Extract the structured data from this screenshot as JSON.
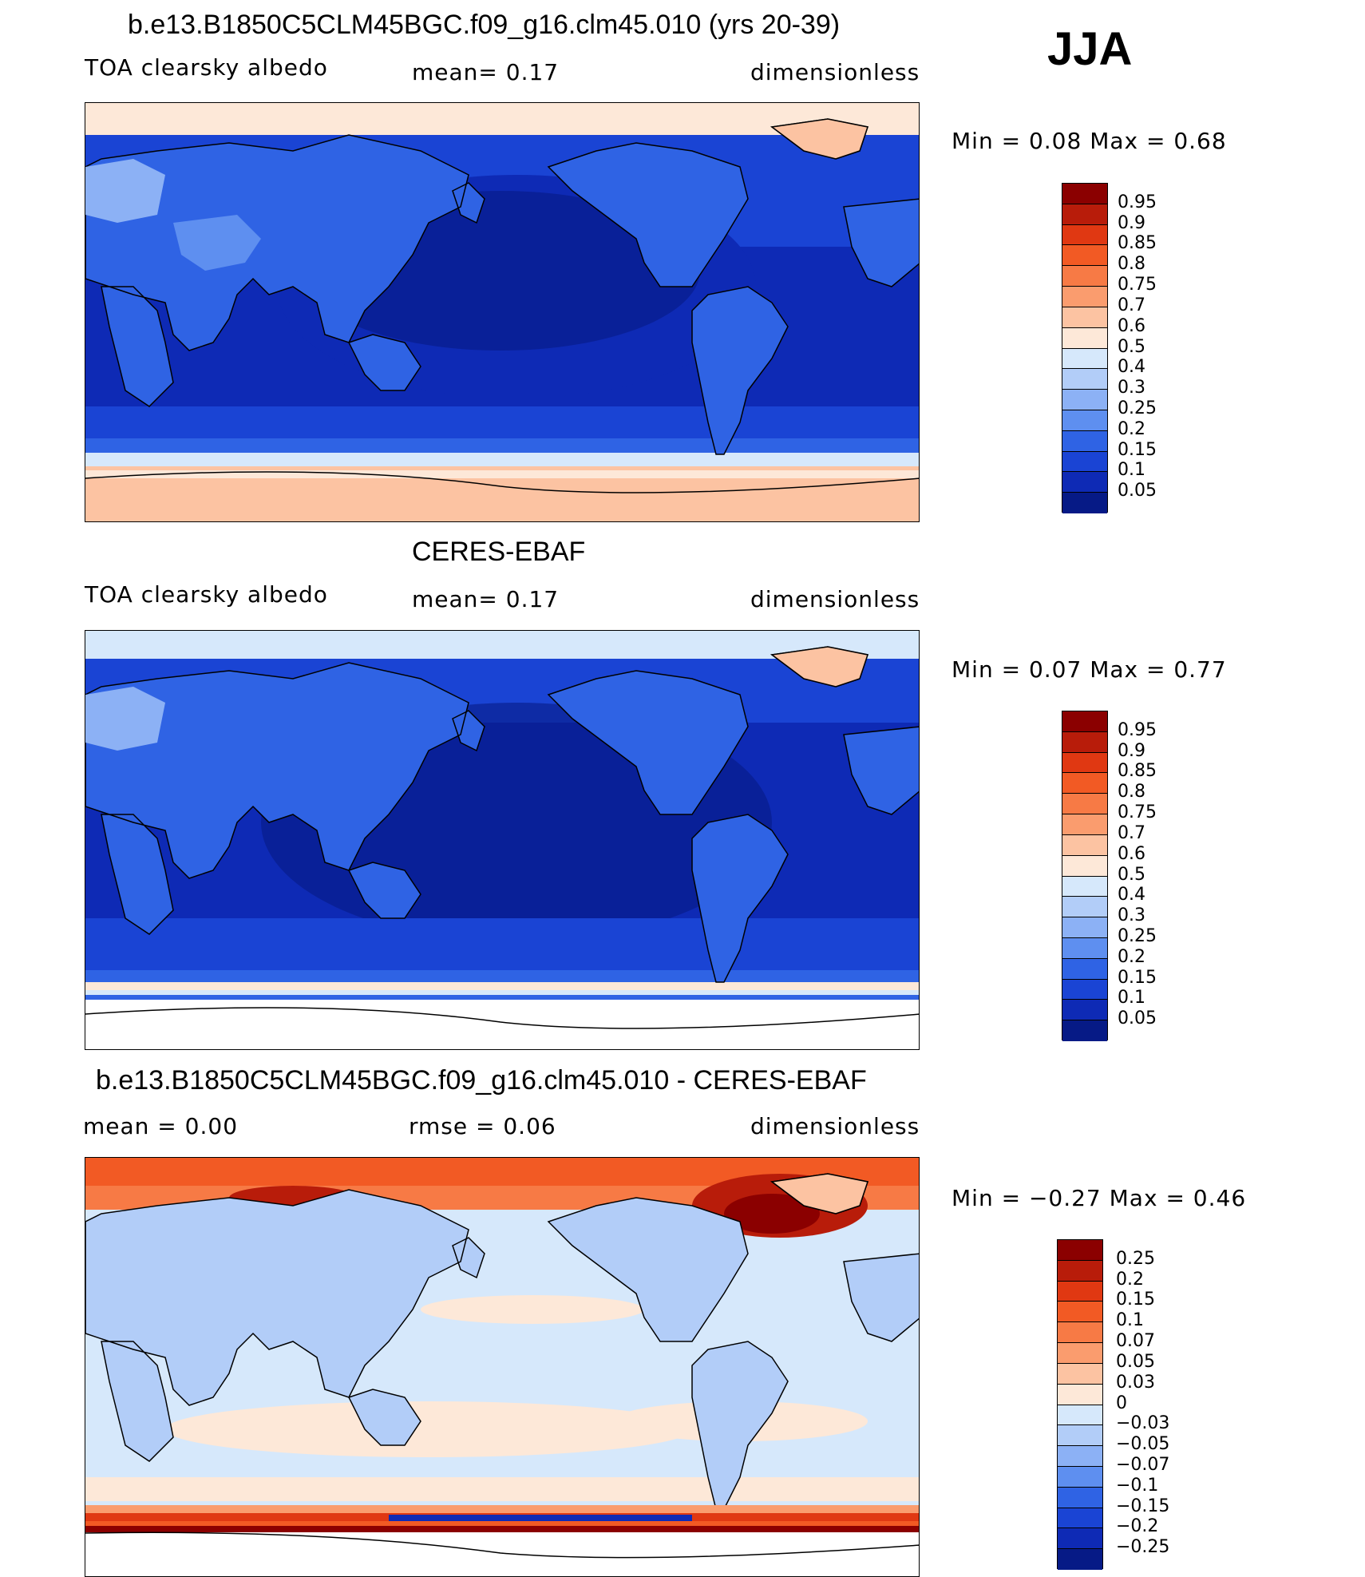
{
  "season": "JJA",
  "panels": [
    {
      "title": "b.e13.B1850C5CLM45BGC.f09_g16.clm45.010 (yrs 20-39)",
      "variable": "TOA clearsky albedo",
      "left_stat": "",
      "mid_stat": "mean=    0.17",
      "units": "dimensionless",
      "minmax": "Min  =     0.08  Max  =     0.68",
      "colorbar_levels": [
        "0.95",
        "0.9",
        "0.85",
        "0.8",
        "0.75",
        "0.7",
        "0.6",
        "0.5",
        "0.4",
        "0.3",
        "0.25",
        "0.2",
        "0.15",
        "0.1",
        "0.05"
      ],
      "colors": [
        "#8b0000",
        "#b81c0a",
        "#e03812",
        "#f25a24",
        "#f77a45",
        "#fa9c6e",
        "#fcc3a2",
        "#fde8d8",
        "#d6e8fb",
        "#b2cdf8",
        "#8cb1f5",
        "#5e8ff0",
        "#2f63e4",
        "#1a44d4",
        "#0e2ab5",
        "#061a86"
      ]
    },
    {
      "title": "CERES-EBAF",
      "variable": "TOA clearsky albedo",
      "left_stat": "",
      "mid_stat": "mean=    0.17",
      "units": "dimensionless",
      "minmax": "Min  =     0.07  Max  =     0.77",
      "colorbar_levels": [
        "0.95",
        "0.9",
        "0.85",
        "0.8",
        "0.75",
        "0.7",
        "0.6",
        "0.5",
        "0.4",
        "0.3",
        "0.25",
        "0.2",
        "0.15",
        "0.1",
        "0.05"
      ],
      "colors": [
        "#8b0000",
        "#b81c0a",
        "#e03812",
        "#f25a24",
        "#f77a45",
        "#fa9c6e",
        "#fcc3a2",
        "#fde8d8",
        "#d6e8fb",
        "#b2cdf8",
        "#8cb1f5",
        "#5e8ff0",
        "#2f63e4",
        "#1a44d4",
        "#0e2ab5",
        "#061a86"
      ]
    },
    {
      "title": "b.e13.B1850C5CLM45BGC.f09_g16.clm45.010 - CERES-EBAF",
      "variable": "",
      "left_stat": "mean  =     0.00",
      "mid_stat": "rmse  =     0.06",
      "units": "dimensionless",
      "minmax": "Min  =    −0.27  Max  =      0.46",
      "colorbar_levels": [
        "0.25",
        "0.2",
        "0.15",
        "0.1",
        "0.07",
        "0.05",
        "0.03",
        "0",
        "−0.03",
        "−0.05",
        "−0.07",
        "−0.1",
        "−0.15",
        "−0.2",
        "−0.25"
      ],
      "colors": [
        "#8b0000",
        "#b81c0a",
        "#e03812",
        "#f25a24",
        "#f77a45",
        "#fa9c6e",
        "#fcc3a2",
        "#fde8d8",
        "#d6e8fb",
        "#b2cdf8",
        "#8cb1f5",
        "#5e8ff0",
        "#2f63e4",
        "#1a44d4",
        "#0e2ab5",
        "#061a86"
      ]
    }
  ]
}
